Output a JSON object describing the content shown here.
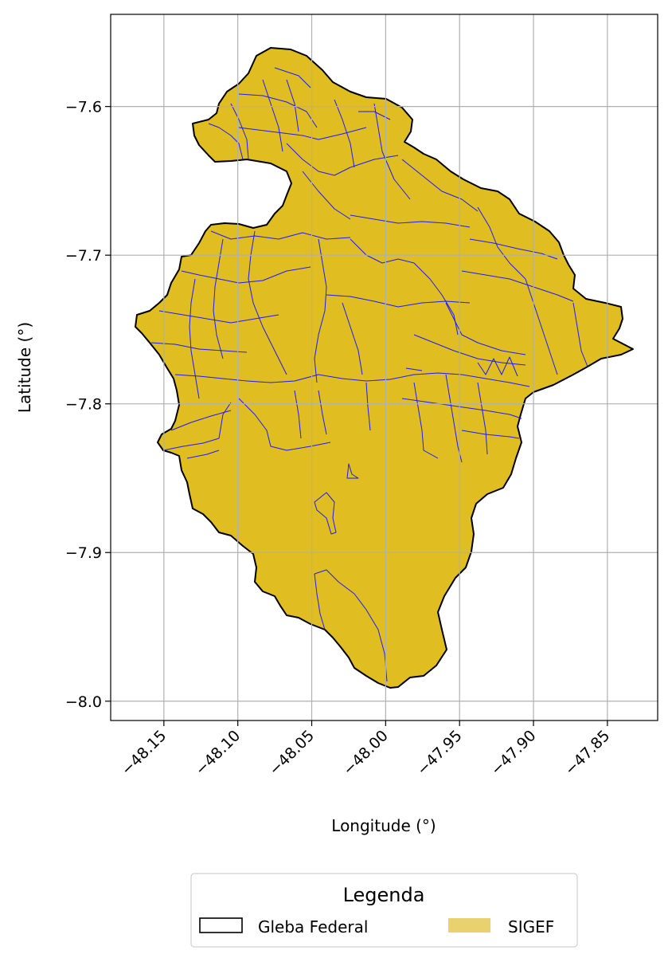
{
  "chart_data": {
    "type": "map",
    "xlabel": "Longitude (°)",
    "ylabel": "Latitude (°)",
    "xlim": [
      -48.186,
      -47.816
    ],
    "ylim": [
      -8.013,
      -7.538
    ],
    "x_ticks": [
      -48.15,
      -48.1,
      -48.05,
      -48.0,
      -47.95,
      -47.9,
      -47.85
    ],
    "x_tick_labels": [
      "−48.15",
      "−48.10",
      "−48.05",
      "−48.00",
      "−47.95",
      "−47.90",
      "−47.85"
    ],
    "y_ticks": [
      -7.6,
      -7.7,
      -7.8,
      -7.9,
      -8.0
    ],
    "y_tick_labels": [
      "−7.6",
      "−7.7",
      "−7.8",
      "−7.9",
      "−8.0"
    ],
    "grid": true,
    "legend": {
      "title": "Legenda",
      "placement": "bottom-center, below axes",
      "entries": [
        {
          "label": "Gleba Federal",
          "style": "outline",
          "color": "#000000"
        },
        {
          "label": "SIGEF",
          "style": "fill",
          "color": "#e8d16e"
        }
      ]
    },
    "layers": [
      {
        "name": "Gleba Federal",
        "fill": "#e0bd20",
        "edge": "#000000"
      },
      {
        "name": "SIGEF",
        "edge": "#1a1aff"
      }
    ]
  }
}
